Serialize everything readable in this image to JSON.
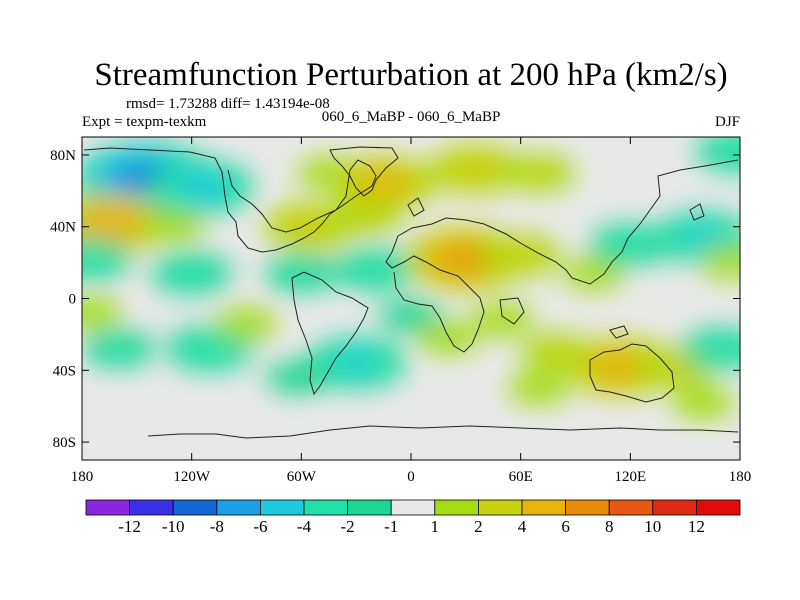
{
  "chart_data": {
    "type": "heatmap",
    "title": "Streamfunction Perturbation at 200 hPa (km2/s)",
    "stats": "rmsd= 1.73288 diff= 1.43194e-08",
    "expt": "Expt = texpm-texkm",
    "comparison": "060_6_MaBP - 060_6_MaBP",
    "season": "DJF",
    "x_ticks": [
      "180",
      "120W",
      "60W",
      "0",
      "60E",
      "120E",
      "180"
    ],
    "x_tick_lon": [
      -180,
      -120,
      -60,
      0,
      60,
      120,
      180
    ],
    "y_ticks": [
      "80N",
      "40N",
      "0",
      "40S",
      "80S"
    ],
    "y_tick_lat": [
      80,
      40,
      0,
      -40,
      -80
    ],
    "xlim": [
      -180,
      180
    ],
    "ylim": [
      -90,
      90
    ],
    "colorbar_labels": [
      "-12",
      "-10",
      "-8",
      "-6",
      "-4",
      "-2",
      "-1",
      "1",
      "2",
      "4",
      "6",
      "8",
      "10",
      "12"
    ],
    "colorbar_colors": [
      "#8b26e0",
      "#3a2ee6",
      "#1466d6",
      "#1aa0e6",
      "#20c8e0",
      "#22e0a8",
      "#1ed492",
      "#e8e8e8",
      "#a4dc14",
      "#c8d210",
      "#e6b40c",
      "#e88c0a",
      "#e65814",
      "#e02a14",
      "#e00c0c"
    ],
    "anomalies": [
      {
        "lon": -145,
        "lat": 66,
        "value": -8.5
      },
      {
        "lon": -115,
        "lat": 62,
        "value": -5
      },
      {
        "lon": -165,
        "lat": 42,
        "value": 6
      },
      {
        "lon": -130,
        "lat": 40,
        "value": 2
      },
      {
        "lon": -175,
        "lat": 22,
        "value": -3
      },
      {
        "lon": -120,
        "lat": 14,
        "value": -3
      },
      {
        "lon": -60,
        "lat": 14,
        "value": -2.5
      },
      {
        "lon": -20,
        "lat": 16,
        "value": -3
      },
      {
        "lon": 15,
        "lat": 18,
        "value": 2
      },
      {
        "lon": -45,
        "lat": 70,
        "value": 2
      },
      {
        "lon": -15,
        "lat": 64,
        "value": 5
      },
      {
        "lon": 35,
        "lat": 72,
        "value": 4
      },
      {
        "lon": 70,
        "lat": 70,
        "value": 2.5
      },
      {
        "lon": -55,
        "lat": 40,
        "value": 4
      },
      {
        "lon": -25,
        "lat": 46,
        "value": 2.5
      },
      {
        "lon": 30,
        "lat": 22,
        "value": 6.5
      },
      {
        "lon": 60,
        "lat": 24,
        "value": 3
      },
      {
        "lon": 100,
        "lat": 14,
        "value": 2
      },
      {
        "lon": 120,
        "lat": 30,
        "value": -3
      },
      {
        "lon": 160,
        "lat": 34,
        "value": -4.5
      },
      {
        "lon": 175,
        "lat": 20,
        "value": 2
      },
      {
        "lon": 178,
        "lat": 82,
        "value": -3
      },
      {
        "lon": -175,
        "lat": -8,
        "value": 2
      },
      {
        "lon": -160,
        "lat": -28,
        "value": -2.5
      },
      {
        "lon": -110,
        "lat": -28,
        "value": -3.5
      },
      {
        "lon": -90,
        "lat": -14,
        "value": 2
      },
      {
        "lon": -30,
        "lat": -36,
        "value": -4.5
      },
      {
        "lon": -62,
        "lat": -44,
        "value": -2
      },
      {
        "lon": 0,
        "lat": -10,
        "value": -2
      },
      {
        "lon": 50,
        "lat": -12,
        "value": 2
      },
      {
        "lon": 20,
        "lat": -22,
        "value": 2
      },
      {
        "lon": 80,
        "lat": -30,
        "value": 2.5
      },
      {
        "lon": 115,
        "lat": -38,
        "value": 5.5
      },
      {
        "lon": 145,
        "lat": -38,
        "value": 3
      },
      {
        "lon": 170,
        "lat": -28,
        "value": -3
      },
      {
        "lon": 160,
        "lat": -58,
        "value": 2
      },
      {
        "lon": 70,
        "lat": -50,
        "value": 2
      }
    ]
  }
}
